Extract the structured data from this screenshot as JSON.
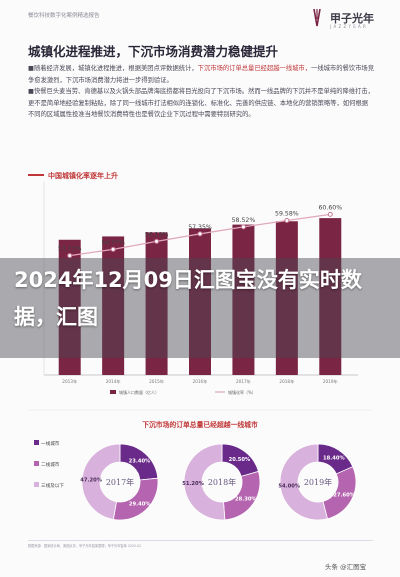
{
  "header": {
    "source_name": "餐饮科技数字化案例精选报告",
    "brand_name": "甲子光年",
    "brand_en": "J A Z Z Y E A R"
  },
  "title": "城镇化进程推进，下沉市场消费潜力稳健提升",
  "body": {
    "p1_prefix": "■随着经济发展，城镇化进程推进，根据美团点评数据统计，",
    "p1_hl": "下沉市场的订单总量已经超越一线城市，",
    "p1_suffix": "一线城市的餐饮市场竞争愈发激烈，下沉市场消费潜力将进一步得到验证。",
    "p2": "■快餐巨头麦当劳、肯德基以及火锅头部品牌海底捞都将目光投向了下沉市场。然而一线品牌的下沉并不是单纯的降维打击，更不是简单地经验复制粘贴，除了同一线城市打法相似的连锁化、标准化、完善的供应链、本地化的营销策略等，如何根据不同的区域属性投准当地餐饮消费特性也是餐饮企业下沉过程中需要特别研究的。"
  },
  "chart_title": "中国城镇化率逐年上升",
  "headline": "2024年12月09日汇图宝没有实时数据，汇图",
  "donut_section_title": "下沉市场的订单总量已经超越一线城市",
  "chart_data": [
    {
      "type": "line",
      "title": "中国城镇化率逐年上升",
      "x": [
        "2013年",
        "2014年",
        "2015年",
        "2016年",
        "2017年",
        "2018年",
        "2019年"
      ],
      "series": [
        {
          "name": "",
          "values": [
            53.73,
            54.77,
            56.1,
            57.35,
            58.52,
            59.58,
            60.6
          ]
        }
      ],
      "value_labels": [
        "53.73%",
        "54.77%",
        "56.10%",
        "57.35%",
        "58.52%",
        "59.58%",
        "60.60%"
      ],
      "color": "#e0a8b8"
    },
    {
      "type": "bar",
      "categories": [
        "2013年",
        "2014年",
        "2015年",
        "2016年",
        "2017年",
        "2018年",
        "2019年"
      ],
      "values": [
        73.1,
        74.9,
        77.1,
        79.3,
        81.3,
        83.1,
        84.8
      ],
      "color": "#7b2545",
      "legend": [
        "城镇人口数量（亿人）",
        "城镇化率（%）"
      ]
    },
    {
      "type": "pie",
      "title": "2017年",
      "slices": [
        {
          "label": "一线城市",
          "value": 23.4
        },
        {
          "label": "二线城市",
          "value": 29.4
        },
        {
          "label": "下沉市场",
          "value": 47.2
        }
      ],
      "labels": [
        "23.40%",
        "29.40%",
        "47.20%"
      ]
    },
    {
      "type": "pie",
      "title": "2018年",
      "slices": [
        {
          "label": "一线城市",
          "value": 20.5
        },
        {
          "label": "二线城市",
          "value": 28.3
        },
        {
          "label": "下沉市场",
          "value": 51.2
        }
      ],
      "labels": [
        "20.50%",
        "28.30%",
        "51.20%"
      ]
    },
    {
      "type": "pie",
      "title": "2019年",
      "slices": [
        {
          "label": "一线城市",
          "value": 18.4
        },
        {
          "label": "二线城市",
          "value": 27.6
        },
        {
          "label": "下沉市场",
          "value": 54.0
        }
      ],
      "labels": [
        "18.40%",
        "27.60%",
        "54.00%"
      ]
    }
  ],
  "donut_legend": [
    "一线城市",
    "二线城市",
    "三线及以下"
  ],
  "footer": "数据来源：国家统计局、美团点评，甲子光年智库整理；甲子光年智库 2020.02",
  "watermark": "头条 @汇图宝",
  "colors": {
    "accent_red": "#c03636",
    "bar": "#7b2545",
    "line": "#e0a8b8",
    "donut_dark": "#6a2a8a",
    "donut_mid": "#b565b0",
    "donut_light": "#d8b2dc"
  }
}
